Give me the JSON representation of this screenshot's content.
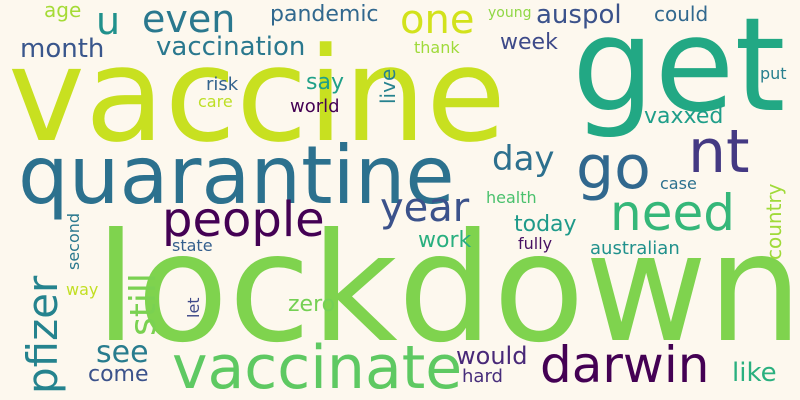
{
  "words": [
    {
      "text": "lockdown",
      "color": "#7fd34e"
    },
    {
      "text": "vaccine",
      "color": "#c8e020"
    },
    {
      "text": "get",
      "color": "#22a884"
    },
    {
      "text": "quarantine",
      "color": "#2c718e"
    },
    {
      "text": "vaccinate",
      "color": "#5ec962"
    },
    {
      "text": "darwin",
      "color": "#440154"
    },
    {
      "text": "nt",
      "color": "#443983"
    },
    {
      "text": "go",
      "color": "#31688e"
    },
    {
      "text": "people",
      "color": "#440154"
    },
    {
      "text": "need",
      "color": "#35b779"
    },
    {
      "text": "year",
      "color": "#3b528b"
    },
    {
      "text": "pfizer",
      "color": "#25838e"
    },
    {
      "text": "still",
      "color": "#7ad151"
    },
    {
      "text": "see",
      "color": "#287c8e"
    },
    {
      "text": "even",
      "color": "#2a788e"
    },
    {
      "text": "one",
      "color": "#d2e21b"
    },
    {
      "text": "u",
      "color": "#21918c"
    },
    {
      "text": "day",
      "color": "#2d708e"
    },
    {
      "text": "vaccination",
      "color": "#2a788e"
    },
    {
      "text": "month",
      "color": "#39568c"
    },
    {
      "text": "pandemic",
      "color": "#31688e"
    },
    {
      "text": "auspol",
      "color": "#3b528b"
    },
    {
      "text": "could",
      "color": "#31688e"
    },
    {
      "text": "week",
      "color": "#3e4a89"
    },
    {
      "text": "vaxxed",
      "color": "#1f9e89"
    },
    {
      "text": "say",
      "color": "#1fa088"
    },
    {
      "text": "live",
      "color": "#26828e"
    },
    {
      "text": "today",
      "color": "#1f9a8a"
    },
    {
      "text": "work",
      "color": "#29af7f"
    },
    {
      "text": "country",
      "color": "#a0da39"
    },
    {
      "text": "zero",
      "color": "#75d054"
    },
    {
      "text": "would",
      "color": "#482878"
    },
    {
      "text": "come",
      "color": "#3b528b"
    },
    {
      "text": "like",
      "color": "#2ab07f"
    },
    {
      "text": "hard",
      "color": "#472d7b"
    },
    {
      "text": "risk",
      "color": "#33638d"
    },
    {
      "text": "care",
      "color": "#bddf26"
    },
    {
      "text": "world",
      "color": "#440154"
    },
    {
      "text": "put",
      "color": "#277f8e"
    },
    {
      "text": "health",
      "color": "#4ac16d"
    },
    {
      "text": "case",
      "color": "#2c718e"
    },
    {
      "text": "state",
      "color": "#355f8d"
    },
    {
      "text": "fully",
      "color": "#471063"
    },
    {
      "text": "australian",
      "color": "#21918c"
    },
    {
      "text": "age",
      "color": "#a5db36"
    },
    {
      "text": "young",
      "color": "#8fd744"
    },
    {
      "text": "thank",
      "color": "#9fda3a"
    },
    {
      "text": "second",
      "color": "#2a788e"
    },
    {
      "text": "way",
      "color": "#c2df23"
    },
    {
      "text": "let",
      "color": "#3e4989"
    }
  ]
}
